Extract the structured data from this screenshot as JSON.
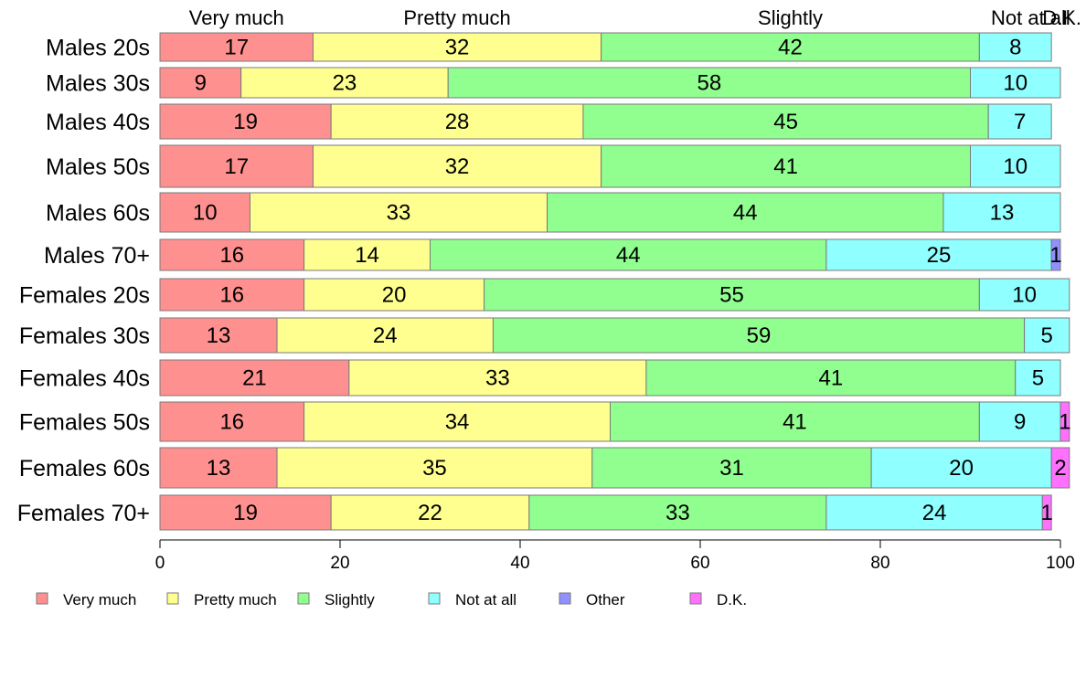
{
  "chart_data": {
    "type": "bar",
    "orientation": "horizontal",
    "stacked": true,
    "categories": [
      "Males 20s",
      "Males 30s",
      "Males 40s",
      "Males 50s",
      "Males 60s",
      "Males 70+",
      "Females 20s",
      "Females 30s",
      "Females 40s",
      "Females 50s",
      "Females 60s",
      "Females 70+"
    ],
    "series": [
      {
        "name": "Very much",
        "color": "#ff9090",
        "values": [
          17,
          9,
          19,
          17,
          10,
          16,
          16,
          13,
          21,
          16,
          13,
          19
        ]
      },
      {
        "name": "Pretty much",
        "color": "#ffff90",
        "values": [
          32,
          23,
          28,
          32,
          33,
          14,
          20,
          24,
          33,
          34,
          35,
          22
        ]
      },
      {
        "name": "Slightly",
        "color": "#90ff90",
        "values": [
          42,
          58,
          45,
          41,
          44,
          44,
          55,
          59,
          41,
          41,
          31,
          33
        ]
      },
      {
        "name": "Not at all",
        "color": "#90ffff",
        "values": [
          8,
          10,
          7,
          10,
          13,
          25,
          10,
          5,
          5,
          9,
          20,
          24
        ]
      },
      {
        "name": "Other",
        "color": "#9090ff",
        "values": [
          0,
          0,
          0,
          0,
          0,
          1,
          0,
          0,
          0,
          0,
          0,
          0
        ]
      },
      {
        "name": "D.K.",
        "color": "#ff70ff",
        "values": [
          0,
          0,
          0,
          0,
          0,
          0,
          0,
          0,
          0,
          1,
          2,
          1
        ]
      }
    ],
    "top_labels": [
      "Very much",
      "Pretty much",
      "Slightly",
      "Not at all",
      "D.K."
    ],
    "xlim": [
      0,
      100
    ],
    "xticks": [
      0,
      20,
      40,
      60,
      80,
      100
    ],
    "grid": false,
    "legend": "bottom-left"
  }
}
